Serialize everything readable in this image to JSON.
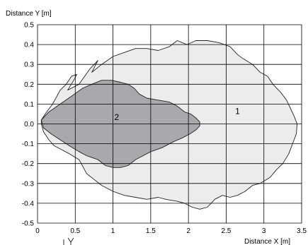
{
  "chart_data": {
    "type": "area",
    "title": "",
    "xlabel": "Distance X [m]",
    "ylabel": "Distance Y [m]",
    "xlim": [
      0,
      3.5
    ],
    "ylim": [
      -0.5,
      0.5
    ],
    "x_ticks": [
      "0",
      "0.5",
      "1",
      "1.5",
      "2",
      "2.5",
      "3",
      "3.5"
    ],
    "y_ticks": [
      "0.5",
      "0.4",
      "0.3",
      "0.2",
      "0.1",
      "0.0",
      "-0.1",
      "-0.2",
      "-0.3",
      "-0.4",
      "-0.5"
    ],
    "grid": true,
    "colors": {
      "zone_1": "#ececec",
      "zone_2": "#a9a9ad",
      "outline": "#222222",
      "grid": "#000000"
    },
    "series": [
      {
        "name": "1",
        "points": [
          [
            0.05,
            0.02
          ],
          [
            0.12,
            0.06
          ],
          [
            0.2,
            0.1
          ],
          [
            0.3,
            0.17
          ],
          [
            0.38,
            0.2
          ],
          [
            0.45,
            0.24
          ],
          [
            0.52,
            0.25
          ],
          [
            0.48,
            0.22
          ],
          [
            0.4,
            0.17
          ],
          [
            0.55,
            0.2
          ],
          [
            0.7,
            0.28
          ],
          [
            0.8,
            0.32
          ],
          [
            0.72,
            0.26
          ],
          [
            0.85,
            0.3
          ],
          [
            1.0,
            0.34
          ],
          [
            1.15,
            0.36
          ],
          [
            1.3,
            0.38
          ],
          [
            1.45,
            0.38
          ],
          [
            1.6,
            0.37
          ],
          [
            1.75,
            0.39
          ],
          [
            1.85,
            0.42
          ],
          [
            1.98,
            0.4
          ],
          [
            2.1,
            0.42
          ],
          [
            2.25,
            0.42
          ],
          [
            2.4,
            0.41
          ],
          [
            2.55,
            0.39
          ],
          [
            2.65,
            0.35
          ],
          [
            2.72,
            0.33
          ],
          [
            2.85,
            0.3
          ],
          [
            2.95,
            0.26
          ],
          [
            3.05,
            0.24
          ],
          [
            3.12,
            0.2
          ],
          [
            3.22,
            0.16
          ],
          [
            3.3,
            0.12
          ],
          [
            3.35,
            0.08
          ],
          [
            3.4,
            0.04
          ],
          [
            3.44,
            0.0
          ],
          [
            3.43,
            -0.05
          ],
          [
            3.38,
            -0.1
          ],
          [
            3.33,
            -0.15
          ],
          [
            3.25,
            -0.2
          ],
          [
            3.17,
            -0.23
          ],
          [
            3.08,
            -0.27
          ],
          [
            2.95,
            -0.3
          ],
          [
            2.85,
            -0.31
          ],
          [
            2.75,
            -0.34
          ],
          [
            2.65,
            -0.36
          ],
          [
            2.55,
            -0.37
          ],
          [
            2.45,
            -0.36
          ],
          [
            2.35,
            -0.38
          ],
          [
            2.25,
            -0.42
          ],
          [
            2.15,
            -0.43
          ],
          [
            2.05,
            -0.42
          ],
          [
            1.95,
            -0.4
          ],
          [
            1.85,
            -0.39
          ],
          [
            1.7,
            -0.38
          ],
          [
            1.6,
            -0.37
          ],
          [
            1.45,
            -0.38
          ],
          [
            1.3,
            -0.37
          ],
          [
            1.15,
            -0.36
          ],
          [
            1.0,
            -0.34
          ],
          [
            0.85,
            -0.31
          ],
          [
            0.75,
            -0.28
          ],
          [
            0.65,
            -0.25
          ],
          [
            0.58,
            -0.2
          ],
          [
            0.55,
            -0.18
          ],
          [
            0.42,
            -0.15
          ],
          [
            0.32,
            -0.13
          ],
          [
            0.22,
            -0.11
          ],
          [
            0.15,
            -0.08
          ],
          [
            0.08,
            -0.04
          ],
          [
            0.05,
            0.0
          ]
        ]
      },
      {
        "name": "2",
        "points": [
          [
            0.05,
            0.02
          ],
          [
            0.15,
            0.06
          ],
          [
            0.3,
            0.1
          ],
          [
            0.45,
            0.14
          ],
          [
            0.6,
            0.18
          ],
          [
            0.72,
            0.2
          ],
          [
            0.85,
            0.22
          ],
          [
            0.98,
            0.22
          ],
          [
            1.1,
            0.21
          ],
          [
            1.2,
            0.2
          ],
          [
            1.28,
            0.18
          ],
          [
            1.35,
            0.15
          ],
          [
            1.45,
            0.13
          ],
          [
            1.6,
            0.12
          ],
          [
            1.75,
            0.11
          ],
          [
            1.85,
            0.09
          ],
          [
            1.95,
            0.06
          ],
          [
            2.03,
            0.05
          ],
          [
            2.1,
            0.03
          ],
          [
            2.15,
            0.01
          ],
          [
            2.15,
            -0.01
          ],
          [
            2.1,
            -0.03
          ],
          [
            2.02,
            -0.05
          ],
          [
            1.92,
            -0.07
          ],
          [
            1.8,
            -0.09
          ],
          [
            1.65,
            -0.12
          ],
          [
            1.5,
            -0.14
          ],
          [
            1.4,
            -0.16
          ],
          [
            1.3,
            -0.18
          ],
          [
            1.2,
            -0.21
          ],
          [
            1.1,
            -0.22
          ],
          [
            1.0,
            -0.22
          ],
          [
            0.9,
            -0.21
          ],
          [
            0.8,
            -0.18
          ],
          [
            0.65,
            -0.16
          ],
          [
            0.55,
            -0.14
          ],
          [
            0.42,
            -0.11
          ],
          [
            0.3,
            -0.08
          ],
          [
            0.18,
            -0.05
          ],
          [
            0.08,
            -0.02
          ]
        ]
      }
    ],
    "zone_labels": [
      {
        "text": "1",
        "x": 2.65,
        "y": 0.05
      },
      {
        "text": "2",
        "x": 1.05,
        "y": 0.02
      }
    ]
  }
}
